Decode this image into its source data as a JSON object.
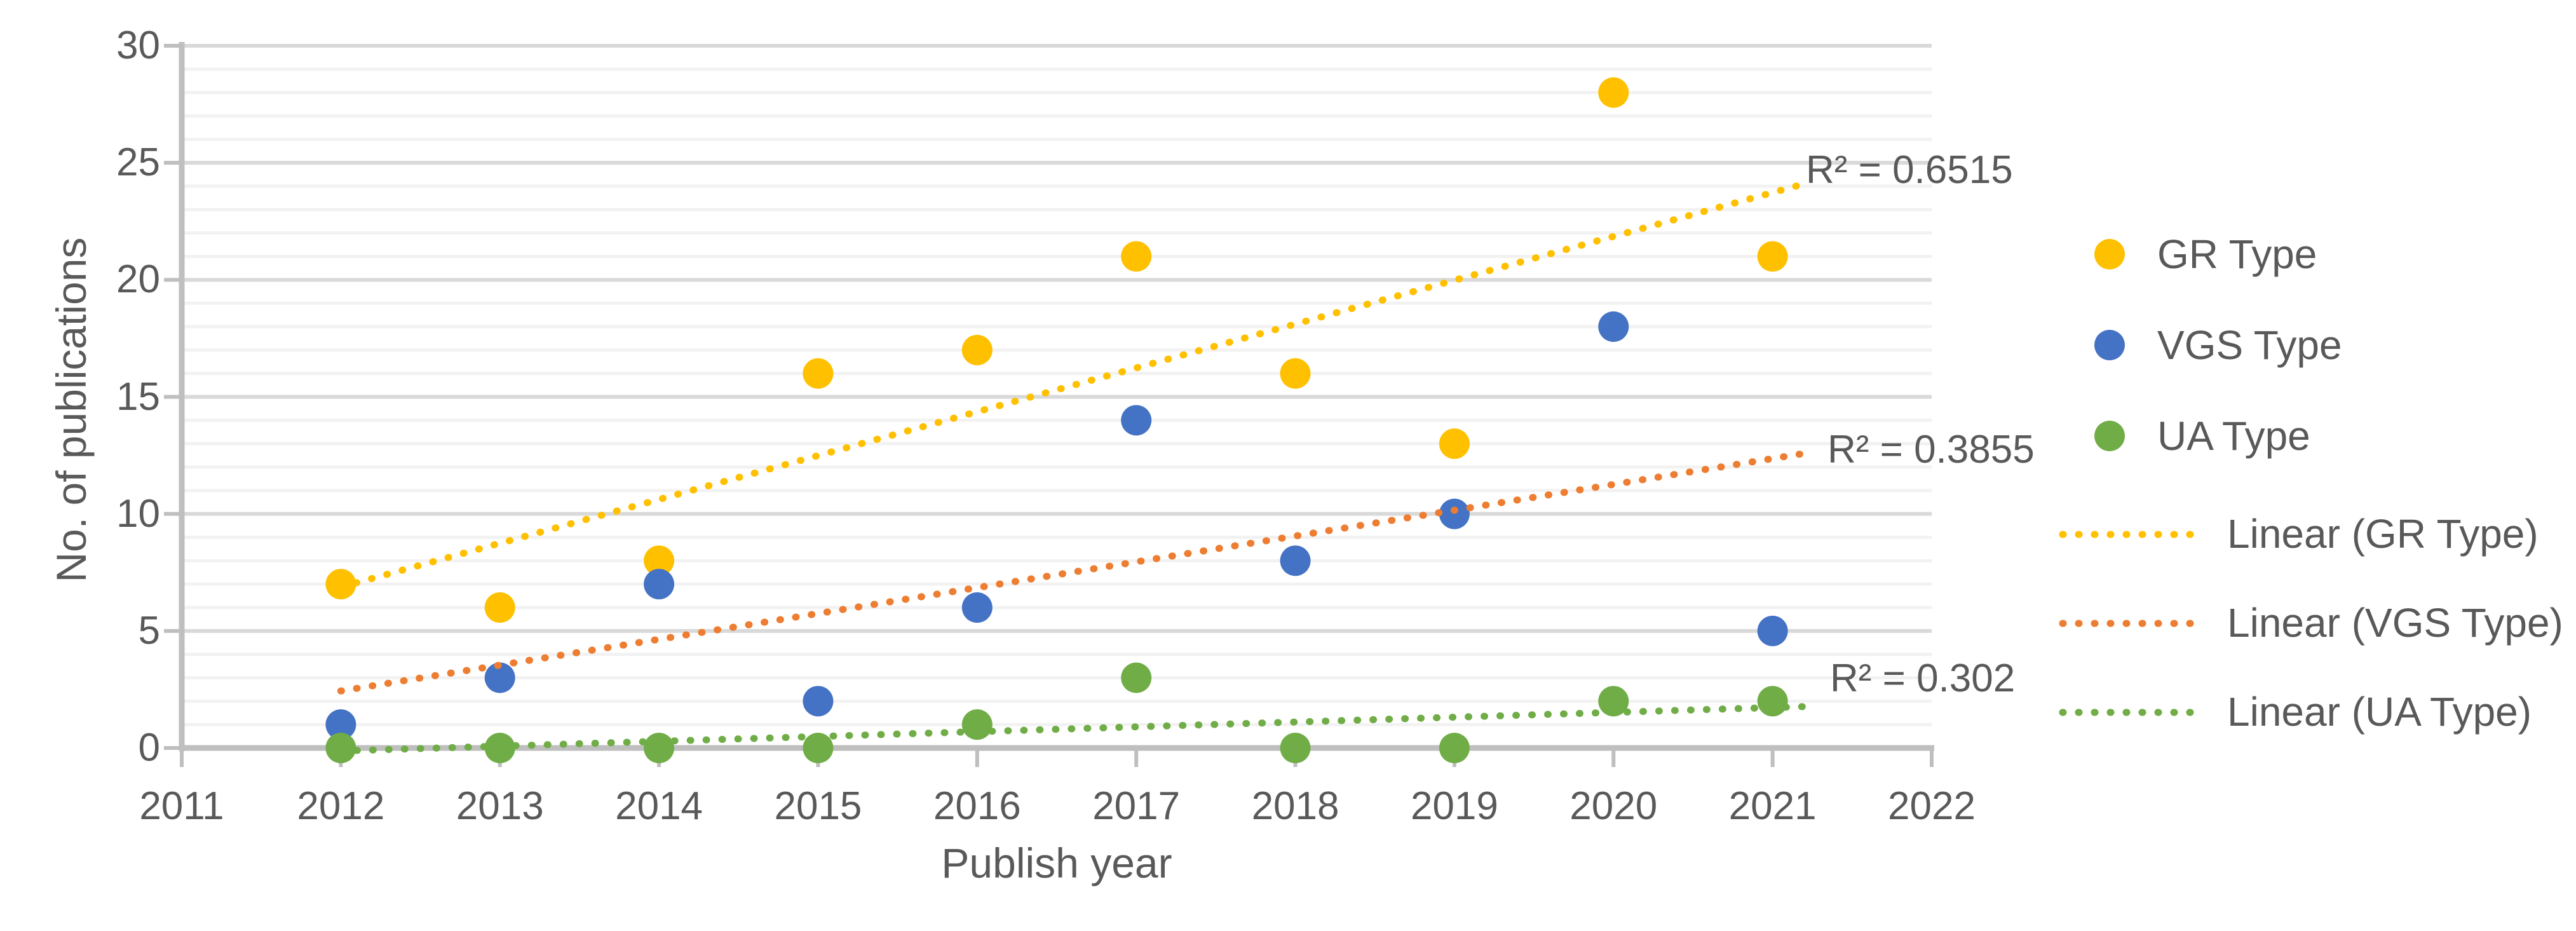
{
  "chart_data": {
    "type": "scatter",
    "title": "",
    "x": [
      2012,
      2013,
      2014,
      2015,
      2016,
      2017,
      2018,
      2019,
      2020,
      2021
    ],
    "series": [
      {
        "name": "GR Type",
        "color": "#FFC000",
        "values": [
          7,
          6,
          8,
          16,
          17,
          21,
          16,
          13,
          28,
          21
        ]
      },
      {
        "name": "VGS Type",
        "color": "#4472C4",
        "values": [
          1,
          3,
          7,
          2,
          6,
          14,
          8,
          10,
          18,
          5
        ]
      },
      {
        "name": "UA Type",
        "color": "#70AD47",
        "values": [
          0,
          0,
          0,
          0,
          1,
          3,
          0,
          0,
          2,
          2
        ]
      }
    ],
    "trendlines": [
      {
        "name": "Linear (GR Type)",
        "series": "GR Type",
        "color": "#FFC000",
        "r2": 0.6515,
        "r2_text": "R² = 0.6515"
      },
      {
        "name": "Linear (VGS Type)",
        "series": "VGS Type",
        "color": "#ED7D31",
        "r2": 0.3855,
        "r2_text": "R² = 0.3855"
      },
      {
        "name": "Linear (UA Type)",
        "series": "UA Type",
        "color": "#70AD47",
        "r2": 0.302,
        "r2_text": "R² = 0.302"
      }
    ],
    "xlabel": "Publish year",
    "ylabel": "No. of publications",
    "x_ticks": [
      2011,
      2012,
      2013,
      2014,
      2015,
      2016,
      2017,
      2018,
      2019,
      2020,
      2021,
      2022
    ],
    "y_ticks": [
      0,
      5,
      10,
      15,
      20,
      25,
      30
    ],
    "xlim": [
      2011,
      2022
    ],
    "ylim": [
      0,
      30
    ],
    "grid": "horizontal, minor every 1, major every 5",
    "legend_position": "right"
  },
  "legend": {
    "items": [
      {
        "label": "GR Type",
        "marker": "dot",
        "color": "#FFC000"
      },
      {
        "label": "VGS Type",
        "marker": "dot",
        "color": "#4472C4"
      },
      {
        "label": "UA Type",
        "marker": "dot",
        "color": "#70AD47"
      },
      {
        "label": "Linear (GR Type)",
        "marker": "dotted-line",
        "color": "#FFC000"
      },
      {
        "label": "Linear (VGS Type)",
        "marker": "dotted-line",
        "color": "#ED7D31"
      },
      {
        "label": "Linear (UA Type)",
        "marker": "dotted-line",
        "color": "#70AD47"
      }
    ]
  },
  "annotations": [
    {
      "text": "R² = 0.6515"
    },
    {
      "text": "R² = 0.3855"
    },
    {
      "text": "R² = 0.302"
    }
  ],
  "colors": {
    "text": "#595959",
    "axis": "#BFBFBF",
    "grid_major": "#D9D9D9",
    "grid_minor": "#F2F2F2",
    "background": "#FFFFFF"
  }
}
